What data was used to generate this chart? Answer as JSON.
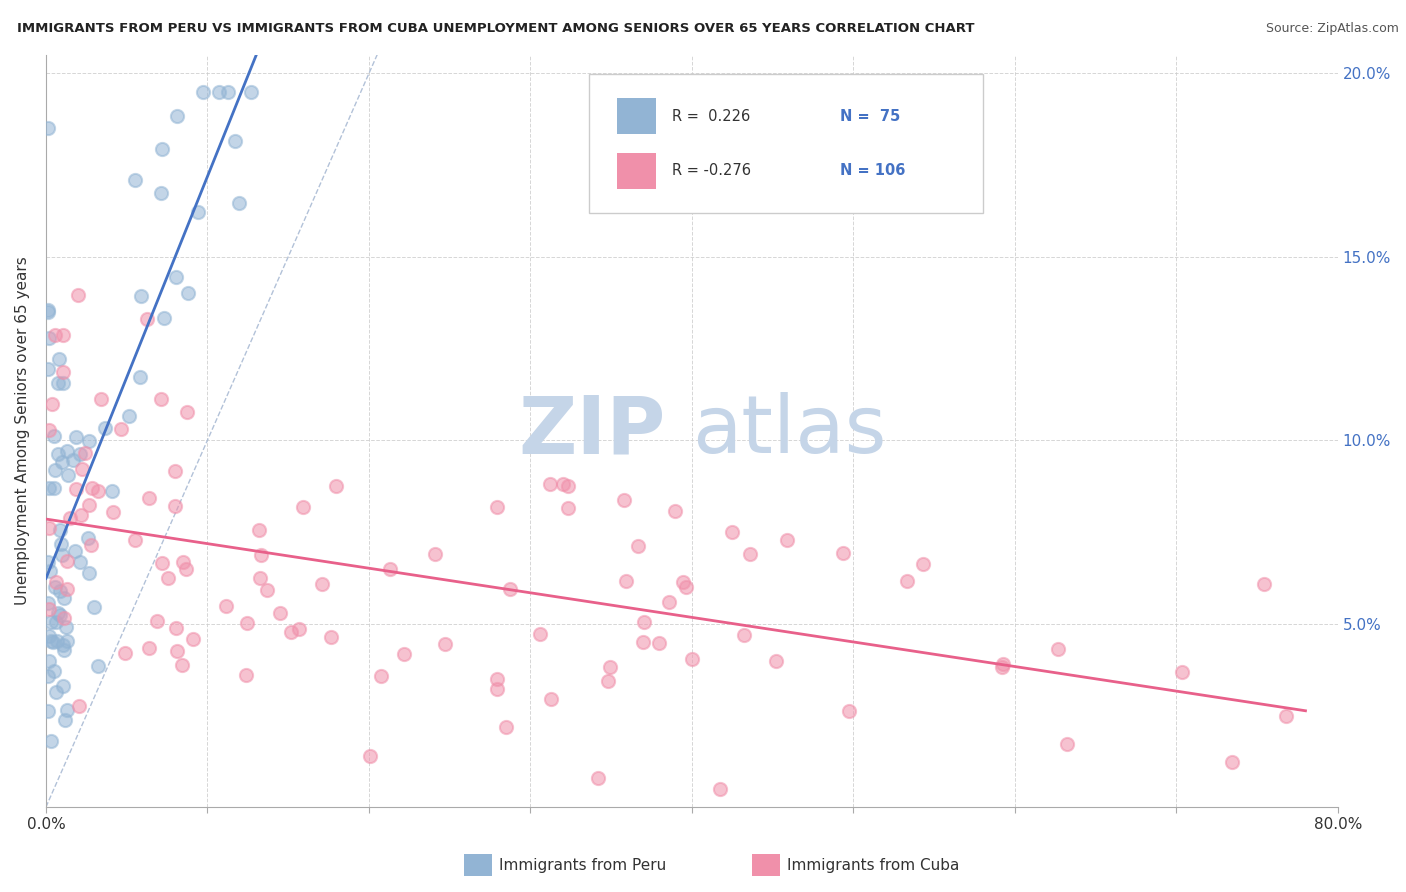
{
  "title": "IMMIGRANTS FROM PERU VS IMMIGRANTS FROM CUBA UNEMPLOYMENT AMONG SENIORS OVER 65 YEARS CORRELATION CHART",
  "source": "Source: ZipAtlas.com",
  "ylabel": "Unemployment Among Seniors over 65 years",
  "xlim": [
    0,
    0.8
  ],
  "ylim": [
    0,
    0.205
  ],
  "legend_peru_label": "Immigrants from Peru",
  "legend_cuba_label": "Immigrants from Cuba",
  "legend_peru_R": "R =  0.226",
  "legend_peru_N": "N =  75",
  "legend_cuba_R": "R = -0.276",
  "legend_cuba_N": "N = 106",
  "peru_color": "#92b4d4",
  "cuba_color": "#f090aa",
  "peru_trend_color": "#4472c4",
  "cuba_trend_color": "#e8608a",
  "diag_color": "#aabbd4",
  "watermark_zip": "ZIP",
  "watermark_atlas": "atlas",
  "watermark_color": "#c8d8ed",
  "background_color": "#ffffff",
  "grid_color": "#cccccc",
  "right_tick_color": "#4472c4",
  "ytick_labels_right": [
    "",
    "5.0%",
    "10.0%",
    "15.0%",
    "20.0%"
  ],
  "ytick_values": [
    0.0,
    0.05,
    0.1,
    0.15,
    0.2
  ],
  "seed": 12345
}
